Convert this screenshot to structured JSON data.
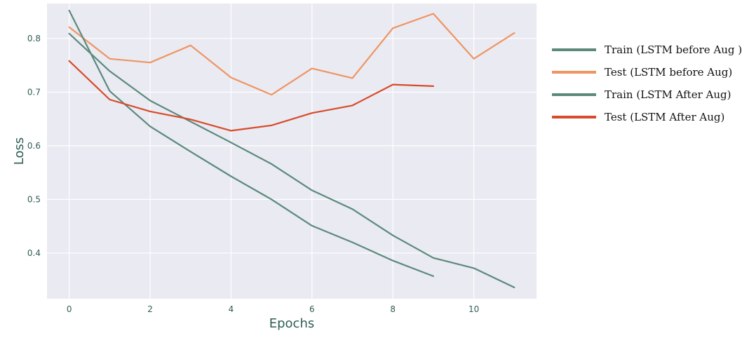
{
  "chart_data": {
    "type": "line",
    "xlabel": "Epochs",
    "ylabel": "Loss",
    "xlim": [
      -0.55,
      11.55
    ],
    "ylim": [
      0.315,
      0.865
    ],
    "xticks": [
      0,
      2,
      4,
      6,
      8,
      10
    ],
    "yticks": [
      0.4,
      0.5,
      0.6,
      0.7,
      0.8
    ],
    "ytick_labels": [
      "0.4",
      "0.5",
      "0.6",
      "0.7",
      "0.8"
    ],
    "grid": true,
    "background": "#eaeaf2",
    "legend_position": "outside-right",
    "series": [
      {
        "name": "Train (LSTM before Aug )",
        "color": "#5b8a7c",
        "x": [
          0,
          1,
          2,
          3,
          4,
          5,
          6,
          7,
          8,
          9,
          10,
          11
        ],
        "y": [
          0.809,
          0.739,
          0.684,
          0.645,
          0.606,
          0.566,
          0.517,
          0.482,
          0.433,
          0.391,
          0.372,
          0.336
        ]
      },
      {
        "name": "Test (LSTM before Aug)",
        "color": "#ee9562",
        "x": [
          0,
          1,
          2,
          3,
          4,
          5,
          6,
          7,
          8,
          9,
          10,
          11
        ],
        "y": [
          0.821,
          0.762,
          0.755,
          0.787,
          0.727,
          0.695,
          0.744,
          0.726,
          0.819,
          0.846,
          0.762,
          0.81
        ]
      },
      {
        "name": "Train (LSTM After Aug)",
        "color": "#5b8a7c",
        "x": [
          0,
          1,
          2,
          3,
          4,
          5,
          6,
          7,
          8,
          9
        ],
        "y": [
          0.852,
          0.702,
          0.636,
          0.589,
          0.543,
          0.5,
          0.451,
          0.42,
          0.386,
          0.357
        ]
      },
      {
        "name": "Test (LSTM After Aug)",
        "color": "#d84b2a",
        "x": [
          0,
          1,
          2,
          3,
          4,
          5,
          6,
          7,
          8,
          9
        ],
        "y": [
          0.758,
          0.686,
          0.664,
          0.649,
          0.628,
          0.638,
          0.661,
          0.675,
          0.714,
          0.711
        ]
      }
    ]
  }
}
